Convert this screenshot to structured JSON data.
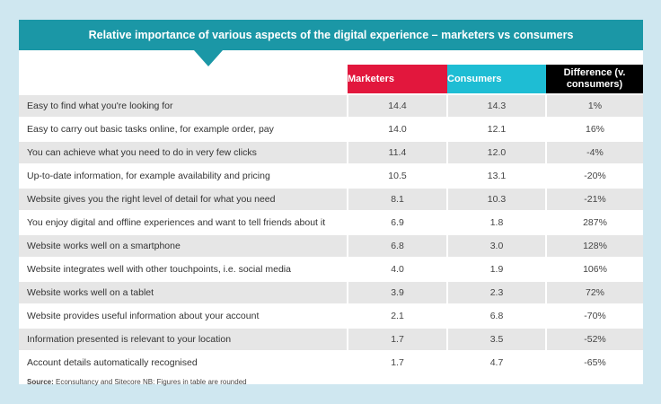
{
  "title": "Relative importance of various aspects of the digital experience – marketers vs consumers",
  "colors": {
    "banner": "#1b97a6",
    "marketers": "#e2173d",
    "consumers": "#1ebdd4",
    "difference": "#000000",
    "background": "#cfe7f0",
    "row_shade": "#e6e6e6"
  },
  "chart_data": {
    "type": "table",
    "columns": [
      "Marketers",
      "Consumers",
      "Difference (v. consumers)"
    ],
    "rows": [
      {
        "label": "Easy to find what you're looking for",
        "marketers": "14.4",
        "consumers": "14.3",
        "difference": "1%"
      },
      {
        "label": "Easy to carry out basic tasks online, for example order, pay",
        "marketers": "14.0",
        "consumers": "12.1",
        "difference": "16%"
      },
      {
        "label": "You can achieve what you need to do in very few clicks",
        "marketers": "11.4",
        "consumers": "12.0",
        "difference": "-4%"
      },
      {
        "label": "Up-to-date information, for example availability and pricing",
        "marketers": "10.5",
        "consumers": "13.1",
        "difference": "-20%"
      },
      {
        "label": "Website gives you the right level of detail for what you need",
        "marketers": "8.1",
        "consumers": "10.3",
        "difference": "-21%"
      },
      {
        "label": "You enjoy digital and offline experiences and want to tell friends about it",
        "marketers": "6.9",
        "consumers": "1.8",
        "difference": "287%"
      },
      {
        "label": "Website works well on a smartphone",
        "marketers": "6.8",
        "consumers": "3.0",
        "difference": "128%"
      },
      {
        "label": "Website integrates well with other touchpoints, i.e. social media",
        "marketers": "4.0",
        "consumers": "1.9",
        "difference": "106%"
      },
      {
        "label": "Website works well on a tablet",
        "marketers": "3.9",
        "consumers": "2.3",
        "difference": "72%"
      },
      {
        "label": "Website provides useful information about your account",
        "marketers": "2.1",
        "consumers": "6.8",
        "difference": "-70%"
      },
      {
        "label": "Information presented is relevant to your location",
        "marketers": "1.7",
        "consumers": "3.5",
        "difference": "-52%"
      },
      {
        "label": "Account details automatically recognised",
        "marketers": "1.7",
        "consumers": "4.7",
        "difference": "-65%"
      }
    ]
  },
  "header": {
    "marketers": "Marketers",
    "consumers": "Consumers",
    "difference_line1": "Difference (v.",
    "difference_line2": "consumers)"
  },
  "footer": {
    "source_label": "Source:",
    "source_text": " Econsultancy and Sitecore  NB: Figures in table are rounded"
  }
}
